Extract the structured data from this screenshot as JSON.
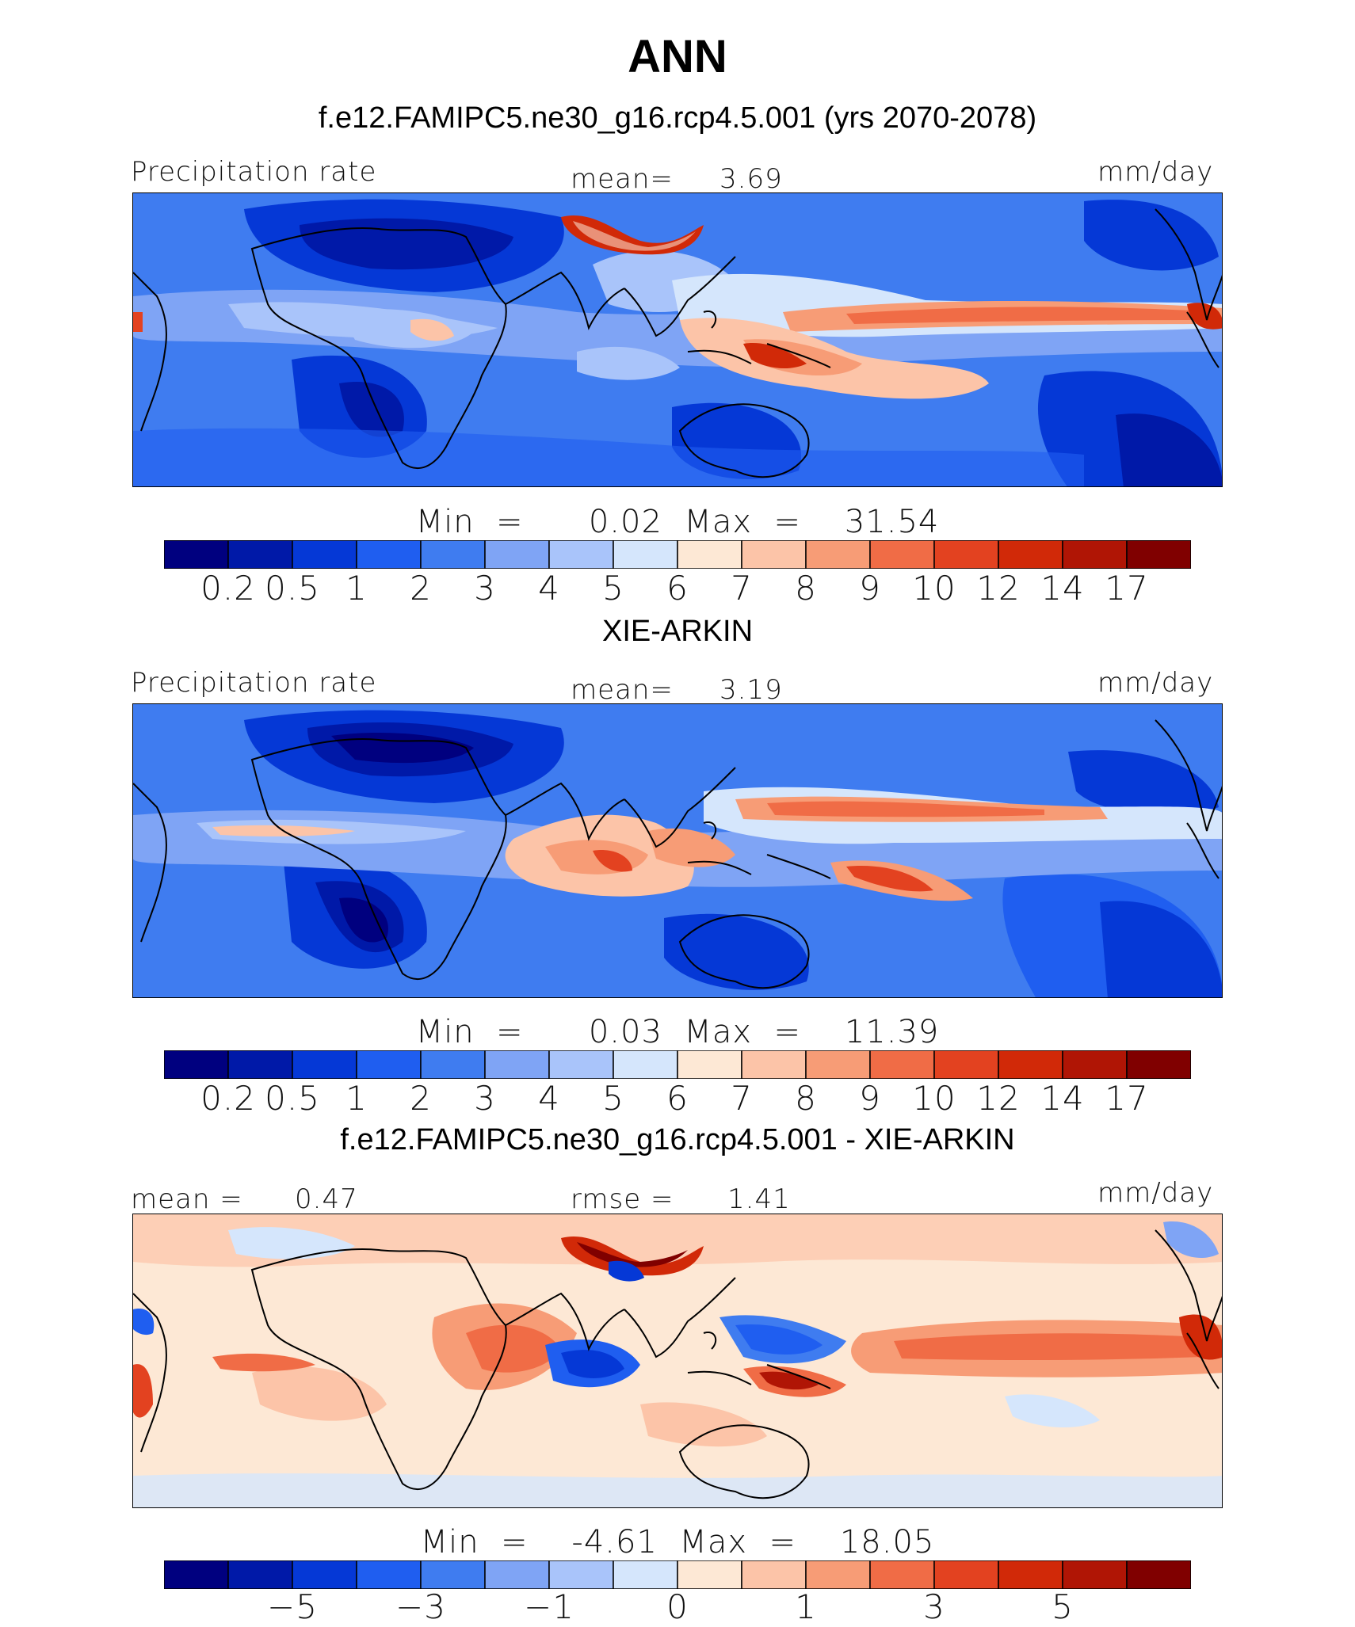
{
  "title": "ANN",
  "units": "mm/day",
  "colors": [
    "#00007f",
    "#0019a8",
    "#0538d6",
    "#1f5ef0",
    "#3f7cf0",
    "#7fa4f5",
    "#a9c4fa",
    "#d5e6fc",
    "#fde8d5",
    "#fcc4a8",
    "#f79c76",
    "#f06c46",
    "#e34220",
    "#d12908",
    "#b01505",
    "#800000"
  ],
  "panels": [
    {
      "title": "f.e12.FAMIPC5.ne30_g16.rcp4.5.001 (yrs 2070-2078)",
      "left_label": "Precipitation rate",
      "stat_label": "mean=",
      "stat_value": "3.69",
      "right_label": "mm/day",
      "min_label": "Min  =",
      "min_value": "0.02",
      "max_label": "Max  =",
      "max_value": "31.54",
      "ticks": [
        "0.2",
        "0.5",
        "1",
        "2",
        "3",
        "4",
        "5",
        "6",
        "7",
        "8",
        "9",
        "10",
        "12",
        "14",
        "17"
      ]
    },
    {
      "title": "XIE-ARKIN",
      "left_label": "Precipitation rate",
      "stat_label": "mean=",
      "stat_value": "3.19",
      "right_label": "mm/day",
      "min_label": "Min  =",
      "min_value": "0.03",
      "max_label": "Max  =",
      "max_value": "11.39",
      "ticks": [
        "0.2",
        "0.5",
        "1",
        "2",
        "3",
        "4",
        "5",
        "6",
        "7",
        "8",
        "9",
        "10",
        "12",
        "14",
        "17"
      ]
    },
    {
      "title": "f.e12.FAMIPC5.ne30_g16.rcp4.5.001 - XIE-ARKIN",
      "left_label": "mean =",
      "left_value": "0.47",
      "stat_label": "rmse =",
      "stat_value": "1.41",
      "right_label": "mm/day",
      "min_label": "Min  =",
      "min_value": "-4.61",
      "max_label": "Max  =",
      "max_value": "18.05",
      "ticks": [
        "−5",
        "−3",
        "−1",
        "0",
        "1",
        "3",
        "5"
      ]
    }
  ]
}
